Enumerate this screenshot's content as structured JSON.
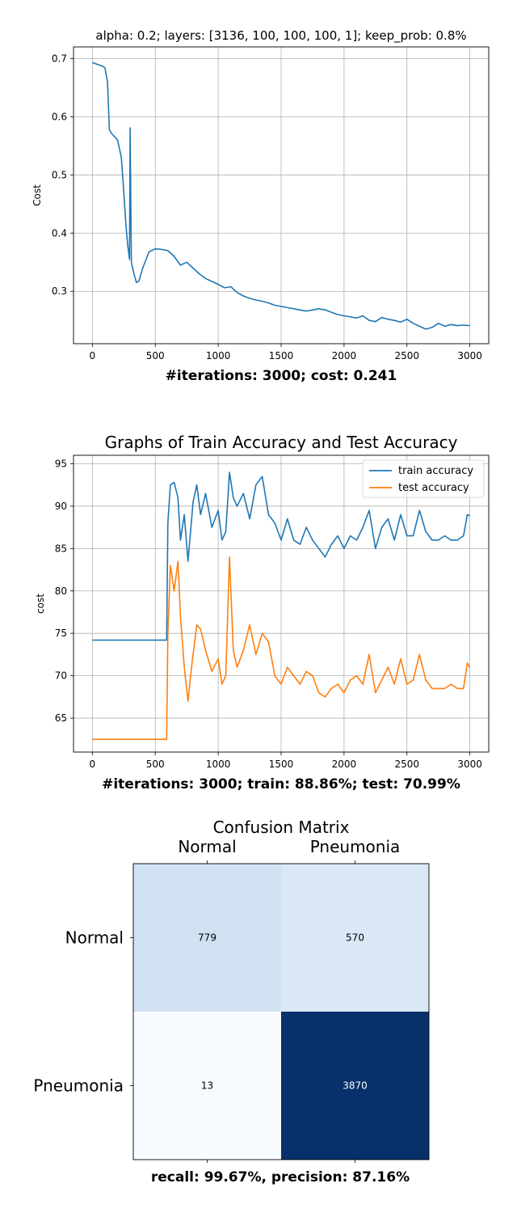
{
  "chart_data": [
    {
      "type": "line",
      "title": "alpha: 0.2; layers: [3136, 100, 100, 100, 1]; keep_prob: 0.8%",
      "xlabel": "#iterations: 3000; cost: 0.241",
      "ylabel": "Cost",
      "xlim": [
        -150,
        3150
      ],
      "ylim": [
        0.21,
        0.72
      ],
      "xticks": [
        0,
        500,
        1000,
        1500,
        2000,
        2500,
        3000
      ],
      "xtick_labels": [
        "0",
        "500",
        "1000",
        "1500",
        "2000",
        "2500",
        "3000"
      ],
      "yticks": [
        0.3,
        0.4,
        0.5,
        0.6,
        0.7
      ],
      "ytick_labels": [
        "0.3",
        "0.4",
        "0.5",
        "0.6",
        "0.7"
      ],
      "grid": true,
      "color": "#1f77b4",
      "series": [
        {
          "x": [
            0,
            40,
            80,
            100,
            120,
            135,
            150,
            200,
            230,
            250,
            265,
            280,
            295,
            300,
            310,
            330,
            350,
            370,
            400,
            450,
            500,
            550,
            600,
            650,
            700,
            750,
            800,
            850,
            900,
            950,
            1000,
            1050,
            1100,
            1150,
            1200,
            1250,
            1300,
            1350,
            1400,
            1450,
            1500,
            1550,
            1600,
            1650,
            1700,
            1750,
            1800,
            1850,
            1900,
            1950,
            2000,
            2050,
            2100,
            2150,
            2200,
            2250,
            2300,
            2350,
            2400,
            2450,
            2500,
            2550,
            2600,
            2650,
            2700,
            2750,
            2800,
            2850,
            2900,
            2950,
            3000
          ],
          "y": [
            0.693,
            0.69,
            0.687,
            0.684,
            0.66,
            0.578,
            0.572,
            0.56,
            0.53,
            0.47,
            0.42,
            0.38,
            0.355,
            0.581,
            0.35,
            0.33,
            0.315,
            0.318,
            0.34,
            0.368,
            0.373,
            0.372,
            0.37,
            0.36,
            0.345,
            0.35,
            0.34,
            0.33,
            0.322,
            0.317,
            0.312,
            0.306,
            0.308,
            0.298,
            0.292,
            0.288,
            0.285,
            0.283,
            0.28,
            0.276,
            0.274,
            0.272,
            0.27,
            0.268,
            0.266,
            0.268,
            0.27,
            0.268,
            0.264,
            0.26,
            0.258,
            0.256,
            0.254,
            0.258,
            0.25,
            0.248,
            0.255,
            0.252,
            0.25,
            0.247,
            0.252,
            0.245,
            0.24,
            0.235,
            0.238,
            0.245,
            0.24,
            0.243,
            0.241,
            0.242,
            0.241
          ]
        }
      ]
    },
    {
      "type": "line",
      "title": "Graphs of Train Accuracy and Test Accuracy",
      "xlabel": "#iterations: 3000; train: 88.86%; test: 70.99%",
      "ylabel": "cost",
      "xlim": [
        -150,
        3150
      ],
      "ylim": [
        61,
        96
      ],
      "xticks": [
        0,
        500,
        1000,
        1500,
        2000,
        2500,
        3000
      ],
      "xtick_labels": [
        "0",
        "500",
        "1000",
        "1500",
        "2000",
        "2500",
        "3000"
      ],
      "yticks": [
        65,
        70,
        75,
        80,
        85,
        90,
        95
      ],
      "ytick_labels": [
        "65",
        "70",
        "75",
        "80",
        "85",
        "90",
        "95"
      ],
      "grid": true,
      "legend": "top-right",
      "series": [
        {
          "name": "train accuracy",
          "color": "#1f77b4",
          "x": [
            0,
            100,
            200,
            300,
            400,
            500,
            590,
            600,
            620,
            650,
            680,
            700,
            730,
            760,
            780,
            800,
            830,
            860,
            900,
            950,
            1000,
            1030,
            1060,
            1090,
            1120,
            1150,
            1200,
            1250,
            1300,
            1350,
            1400,
            1450,
            1500,
            1550,
            1600,
            1650,
            1700,
            1750,
            1800,
            1850,
            1900,
            1950,
            2000,
            2050,
            2100,
            2150,
            2200,
            2250,
            2300,
            2350,
            2400,
            2450,
            2500,
            2550,
            2600,
            2650,
            2700,
            2750,
            2800,
            2850,
            2900,
            2950,
            2980,
            3000
          ],
          "y": [
            74.2,
            74.2,
            74.2,
            74.2,
            74.2,
            74.2,
            74.2,
            88.0,
            92.5,
            92.8,
            91.0,
            86.0,
            89.0,
            83.5,
            87.0,
            90.5,
            92.5,
            89.0,
            91.5,
            87.5,
            89.5,
            86.0,
            87.0,
            94.0,
            91.0,
            90.0,
            91.5,
            88.5,
            92.5,
            93.5,
            89.0,
            88.0,
            86.0,
            88.5,
            86.0,
            85.5,
            87.5,
            86.0,
            85.0,
            84.0,
            85.5,
            86.5,
            85.0,
            86.5,
            86.0,
            87.5,
            89.5,
            85.0,
            87.5,
            88.5,
            86.0,
            89.0,
            86.5,
            86.5,
            89.5,
            87.0,
            86.0,
            86.0,
            86.5,
            86.0,
            86.0,
            86.5,
            89.0,
            88.86
          ]
        },
        {
          "name": "test accuracy",
          "color": "#ff7f0e",
          "x": [
            0,
            100,
            200,
            300,
            400,
            500,
            590,
            600,
            620,
            650,
            680,
            700,
            730,
            760,
            780,
            800,
            830,
            860,
            900,
            950,
            1000,
            1030,
            1060,
            1090,
            1120,
            1150,
            1200,
            1250,
            1300,
            1350,
            1400,
            1450,
            1500,
            1550,
            1600,
            1650,
            1700,
            1750,
            1800,
            1850,
            1900,
            1950,
            2000,
            2050,
            2100,
            2150,
            2200,
            2250,
            2300,
            2350,
            2400,
            2450,
            2500,
            2550,
            2600,
            2650,
            2700,
            2750,
            2800,
            2850,
            2900,
            2950,
            2980,
            3000
          ],
          "y": [
            62.5,
            62.5,
            62.5,
            62.5,
            62.5,
            62.5,
            62.5,
            75.0,
            83.0,
            80.0,
            83.5,
            77.0,
            71.0,
            67.0,
            70.0,
            72.5,
            76.0,
            75.5,
            73.0,
            70.5,
            72.0,
            69.0,
            70.0,
            84.0,
            73.0,
            71.0,
            73.0,
            76.0,
            72.5,
            75.0,
            74.0,
            70.0,
            69.0,
            71.0,
            70.0,
            69.0,
            70.5,
            70.0,
            68.0,
            67.5,
            68.5,
            69.0,
            68.0,
            69.5,
            70.0,
            69.0,
            72.5,
            68.0,
            69.5,
            71.0,
            69.0,
            72.0,
            69.0,
            69.5,
            72.5,
            69.5,
            68.5,
            68.5,
            68.5,
            69.0,
            68.5,
            68.5,
            71.5,
            70.99
          ]
        }
      ]
    },
    {
      "type": "heatmap",
      "title": "Confusion Matrix",
      "xlabel": "recall: 99.67%, precision: 87.16%",
      "x_labels": [
        "Normal",
        "Pneumonia"
      ],
      "y_labels": [
        "Normal",
        "Pneumonia"
      ],
      "colormap": "Blues",
      "values": [
        [
          779,
          570
        ],
        [
          13,
          3870
        ]
      ],
      "cell_colors": [
        [
          "#d0e1f2",
          "#dae8f6"
        ],
        [
          "#f7fbff",
          "#08306b"
        ]
      ],
      "text_colors": [
        [
          "#000000",
          "#000000"
        ],
        [
          "#000000",
          "#ffffff"
        ]
      ]
    }
  ]
}
